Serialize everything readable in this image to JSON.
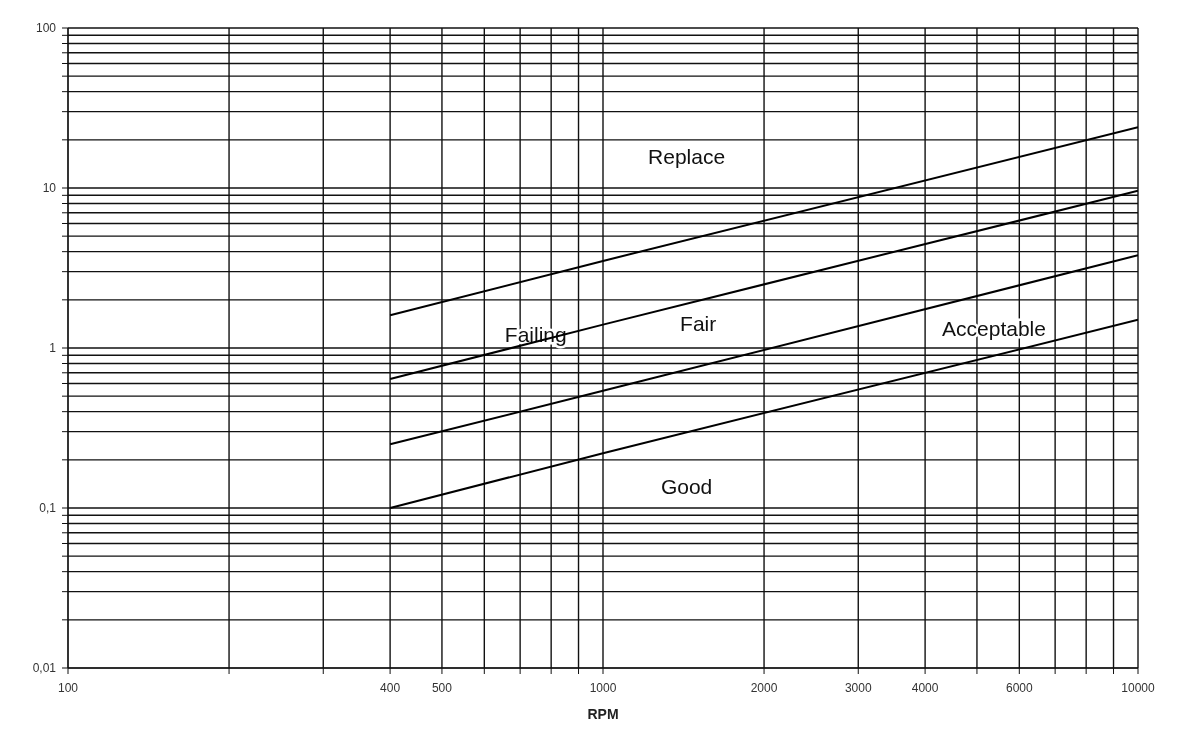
{
  "chart_data": {
    "type": "line",
    "xlabel": "RPM",
    "log": "xy",
    "grid": true,
    "marker": "none",
    "line_style": "solid",
    "xlim": [
      100,
      10000
    ],
    "ylim": [
      0.01,
      100
    ],
    "xticks": [
      100,
      {
        "value": 200,
        "label": null
      },
      {
        "value": 300,
        "label": null
      },
      400,
      500,
      {
        "value": 600,
        "label": null
      },
      {
        "value": 700,
        "label": null
      },
      {
        "value": 800,
        "label": null
      },
      {
        "value": 900,
        "label": null
      },
      1000,
      2000,
      3000,
      4000,
      {
        "value": 5000,
        "label": null
      },
      6000,
      {
        "value": 7000,
        "label": null
      },
      {
        "value": 8000,
        "label": null
      },
      {
        "value": 9000,
        "label": null
      },
      10000
    ],
    "yticks": [
      {
        "value": 0.01,
        "label": "0,01"
      },
      {
        "value": 0.02,
        "label": null
      },
      {
        "value": 0.03,
        "label": null
      },
      {
        "value": 0.04,
        "label": null
      },
      {
        "value": 0.05,
        "label": null
      },
      {
        "value": 0.06,
        "label": null
      },
      {
        "value": 0.07,
        "label": null
      },
      {
        "value": 0.08,
        "label": null
      },
      {
        "value": 0.09,
        "label": null
      },
      {
        "value": 0.1,
        "label": "0,1"
      },
      {
        "value": 0.2,
        "label": null
      },
      {
        "value": 0.3,
        "label": null
      },
      {
        "value": 0.4,
        "label": null
      },
      {
        "value": 0.5,
        "label": null
      },
      {
        "value": 0.6,
        "label": null
      },
      {
        "value": 0.7,
        "label": null
      },
      {
        "value": 0.8,
        "label": null
      },
      {
        "value": 0.9,
        "label": null
      },
      1,
      {
        "value": 2,
        "label": null
      },
      {
        "value": 3,
        "label": null
      },
      {
        "value": 4,
        "label": null
      },
      {
        "value": 5,
        "label": null
      },
      {
        "value": 6,
        "label": null
      },
      {
        "value": 7,
        "label": null
      },
      {
        "value": 8,
        "label": null
      },
      {
        "value": 9,
        "label": null
      },
      10,
      {
        "value": 20,
        "label": null
      },
      {
        "value": 30,
        "label": null
      },
      {
        "value": 40,
        "label": null
      },
      {
        "value": 50,
        "label": null
      },
      {
        "value": 60,
        "label": null
      },
      {
        "value": 70,
        "label": null
      },
      {
        "value": 80,
        "label": null
      },
      {
        "value": 90,
        "label": null
      },
      100
    ],
    "x": [
      400,
      1000,
      10000
    ],
    "series": [
      {
        "color": "#000000",
        "values": [
          1.6,
          3.5,
          24
        ]
      },
      {
        "color": "#000000",
        "values": [
          0.64,
          1.4,
          9.6
        ]
      },
      {
        "color": "#000000",
        "values": [
          0.25,
          0.54,
          3.8
        ]
      },
      {
        "color": "#000000",
        "values": [
          0.1,
          0.22,
          1.5
        ]
      }
    ],
    "annotations": [
      "Replace",
      "Failing",
      "Fair",
      "Acceptable",
      "Good"
    ]
  }
}
